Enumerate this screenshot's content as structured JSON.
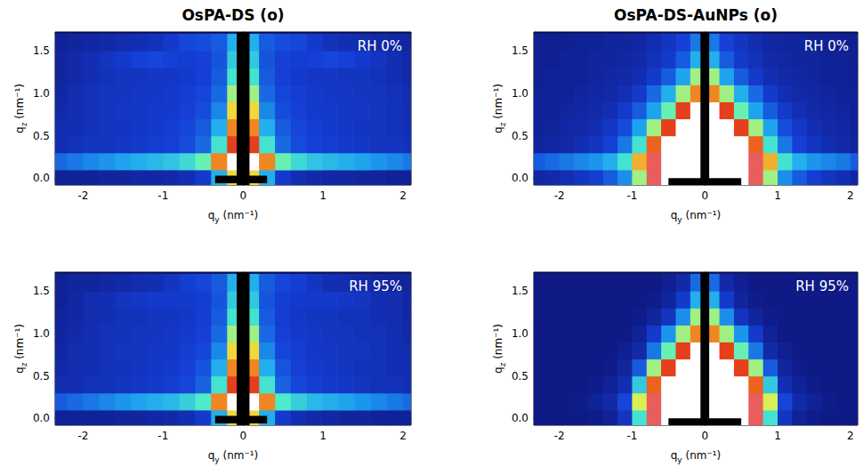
{
  "chart_data": [
    {
      "type": "heatmap",
      "title": "OsPA-DS (o)",
      "annotation": "RH 0%",
      "x_label": "qy (nm⁻¹)",
      "y_label": "qz (nm⁻¹)",
      "xlim": [
        -2.35,
        2.1
      ],
      "ylim": [
        -0.08,
        1.72
      ],
      "xticks": [
        -2,
        -1,
        0,
        1,
        2
      ],
      "yticks": [
        {
          "value": 0,
          "label": "0.0"
        },
        0.5,
        {
          "value": 1,
          "label": "1.0"
        },
        1.5
      ],
      "intensity_range": [
        0,
        10
      ],
      "qy": [
        -2.3,
        -2.1,
        -1.9,
        -1.7,
        -1.5,
        -1.3,
        -1.1,
        -0.9,
        -0.7,
        -0.5,
        -0.3,
        -0.1,
        0.1,
        0.3,
        0.5,
        0.7,
        0.9,
        1.1,
        1.3,
        1.5,
        1.7,
        1.9,
        2.1
      ],
      "qz": [
        0,
        0.2,
        0.4,
        0.6,
        0.8,
        1,
        1.2,
        1.4,
        1.6
      ],
      "intensity": [
        [
          0.3,
          0.3,
          0.3,
          0.4,
          0.4,
          0.5,
          0.5,
          0.6,
          0.8,
          1.2,
          3,
          6,
          6,
          3,
          1.2,
          0.8,
          0.6,
          0.5,
          0.5,
          0.4,
          0.4,
          0.3,
          0.3
        ],
        [
          2,
          2.2,
          2.4,
          2.6,
          2.8,
          3,
          3.2,
          3.4,
          3.8,
          4.5,
          7,
          10,
          10,
          7,
          4.5,
          3.8,
          3.4,
          3.2,
          3,
          2.8,
          2.6,
          2.4,
          2.2
        ],
        [
          0.8,
          0.9,
          1,
          1,
          1.1,
          1.2,
          1.3,
          1.4,
          1.6,
          2,
          4,
          8,
          8,
          4,
          2,
          1.6,
          1.4,
          1.3,
          1.2,
          1.1,
          1,
          1,
          0.9
        ],
        [
          0.7,
          0.8,
          0.9,
          1,
          1,
          1.1,
          1.2,
          1.3,
          1.5,
          1.8,
          3,
          7,
          7,
          3,
          1.8,
          1.5,
          1.3,
          1.2,
          1.1,
          1,
          1,
          0.9,
          0.8
        ],
        [
          0.6,
          0.8,
          0.9,
          1,
          1.1,
          1.1,
          1.2,
          1.2,
          1.4,
          1.6,
          2.4,
          6,
          6,
          2.4,
          1.6,
          1.4,
          1.2,
          1.2,
          1.1,
          1.1,
          1,
          0.9,
          0.8
        ],
        [
          0.5,
          0.7,
          0.9,
          1,
          1,
          1.1,
          1.1,
          1.2,
          1.3,
          1.5,
          2,
          5,
          5,
          2,
          1.5,
          1.3,
          1.2,
          1.1,
          1.1,
          1,
          1,
          0.9,
          0.7
        ],
        [
          0.4,
          0.6,
          0.8,
          0.9,
          1,
          1,
          1.1,
          1.1,
          1.2,
          1.4,
          1.8,
          4,
          4,
          1.8,
          1.4,
          1.2,
          1.1,
          1.1,
          1,
          1,
          0.9,
          0.8,
          0.6
        ],
        [
          0.4,
          0.6,
          0.8,
          1,
          1.2,
          1.4,
          1.5,
          1.4,
          1.3,
          1.4,
          1.7,
          3.5,
          3.5,
          1.7,
          1.4,
          1.3,
          1.4,
          1.5,
          1.4,
          1.2,
          1,
          0.8,
          0.6
        ],
        [
          0.3,
          0.4,
          0.5,
          0.6,
          0.7,
          0.8,
          0.9,
          1.2,
          1.5,
          1.6,
          1.8,
          3,
          3,
          1.8,
          1.6,
          1.5,
          1.2,
          0.9,
          0.8,
          0.7,
          0.6,
          0.5,
          0.4
        ]
      ],
      "mask": [
        [
          -0.08,
          0.08,
          -0.08,
          1.72
        ],
        [
          -0.35,
          0.3,
          -0.06,
          0.03
        ]
      ]
    },
    {
      "type": "heatmap",
      "title": "OsPA-DS-AuNPs (o)",
      "annotation": "RH 0%",
      "x_label": "qy (nm⁻¹)",
      "y_label": "qz (nm⁻¹)",
      "xlim": [
        -2.35,
        2.1
      ],
      "ylim": [
        -0.08,
        1.72
      ],
      "xticks": [
        -2,
        -1,
        0,
        1,
        2
      ],
      "yticks": [
        {
          "value": 0,
          "label": "0.0"
        },
        0.5,
        {
          "value": 1,
          "label": "1.0"
        },
        1.5
      ],
      "intensity_range": [
        0,
        10
      ],
      "qy": [
        -2.3,
        -2.1,
        -1.9,
        -1.7,
        -1.5,
        -1.3,
        -1.1,
        -0.9,
        -0.7,
        -0.5,
        -0.3,
        -0.1,
        0.1,
        0.3,
        0.5,
        0.7,
        0.9,
        1.1,
        1.3,
        1.5,
        1.7,
        1.9,
        2.1
      ],
      "qz": [
        0,
        0.2,
        0.4,
        0.6,
        0.8,
        1,
        1.2,
        1.4,
        1.6
      ],
      "intensity": [
        [
          0.5,
          0.6,
          0.8,
          1,
          1.3,
          1.8,
          2.5,
          5,
          9,
          10,
          10,
          10,
          10,
          10,
          10,
          9,
          5,
          2.5,
          1.8,
          1.3,
          1,
          0.8,
          0.5
        ],
        [
          1.8,
          2,
          2.2,
          2.4,
          2.6,
          3,
          4,
          6.5,
          9,
          10,
          10,
          10,
          10,
          10,
          10,
          9,
          6.5,
          4,
          3,
          2.6,
          2.4,
          2.2,
          1.8
        ],
        [
          0.4,
          0.5,
          0.6,
          0.8,
          1,
          1.4,
          2.2,
          4,
          7.5,
          10,
          10,
          10,
          10,
          10,
          10,
          7.5,
          4,
          2.2,
          1.4,
          1,
          0.8,
          0.6,
          0.4
        ],
        [
          0.3,
          0.4,
          0.5,
          0.6,
          0.8,
          1.1,
          1.6,
          2.8,
          5,
          8,
          10,
          10,
          10,
          10,
          8,
          5,
          2.8,
          1.6,
          1.1,
          0.8,
          0.6,
          0.5,
          0.3
        ],
        [
          0.3,
          0.3,
          0.4,
          0.5,
          0.6,
          0.8,
          1.2,
          1.8,
          2.8,
          4.5,
          8,
          10,
          10,
          8,
          4.5,
          2.8,
          1.8,
          1.2,
          0.8,
          0.6,
          0.5,
          0.4,
          0.3
        ],
        [
          0.3,
          0.3,
          0.3,
          0.4,
          0.5,
          0.6,
          0.8,
          1.2,
          2,
          3,
          5,
          7,
          7,
          5,
          3,
          2,
          1.2,
          0.8,
          0.6,
          0.5,
          0.4,
          0.3,
          0.3
        ],
        [
          0.2,
          0.3,
          0.3,
          0.3,
          0.4,
          0.5,
          0.6,
          0.8,
          1.2,
          1.8,
          2.8,
          5,
          5,
          2.8,
          1.8,
          1.2,
          0.8,
          0.6,
          0.5,
          0.4,
          0.3,
          0.3,
          0.2
        ],
        [
          0.2,
          0.2,
          0.3,
          0.3,
          0.4,
          0.4,
          0.5,
          0.6,
          0.9,
          1.2,
          1.8,
          3,
          3,
          1.8,
          1.2,
          0.9,
          0.6,
          0.5,
          0.4,
          0.4,
          0.3,
          0.3,
          0.2
        ],
        [
          0.2,
          0.2,
          0.2,
          0.3,
          0.3,
          0.4,
          0.4,
          0.5,
          0.7,
          1,
          1.4,
          2.2,
          2.2,
          1.4,
          1,
          0.7,
          0.5,
          0.4,
          0.4,
          0.3,
          0.3,
          0.2,
          0.2
        ]
      ],
      "mask": [
        [
          -0.06,
          0.06,
          -0.08,
          1.72
        ],
        [
          -0.5,
          0.5,
          -0.08,
          0
        ]
      ]
    },
    {
      "type": "heatmap",
      "annotation": "RH 95%",
      "x_label": "qy (nm⁻¹)",
      "y_label": "qz (nm⁻¹)",
      "xlim": [
        -2.35,
        2.1
      ],
      "ylim": [
        -0.08,
        1.72
      ],
      "xticks": [
        -2,
        -1,
        0,
        1,
        2
      ],
      "yticks": [
        {
          "value": 0,
          "label": "0.0"
        },
        0.5,
        {
          "value": 1,
          "label": "1.0"
        },
        1.5
      ],
      "intensity_range": [
        0,
        10
      ],
      "qy": [
        -2.3,
        -2.1,
        -1.9,
        -1.7,
        -1.5,
        -1.3,
        -1.1,
        -0.9,
        -0.7,
        -0.5,
        -0.3,
        -0.1,
        0.1,
        0.3,
        0.5,
        0.7,
        0.9,
        1.1,
        1.3,
        1.5,
        1.7,
        1.9,
        2.1
      ],
      "qz": [
        0,
        0.2,
        0.4,
        0.6,
        0.8,
        1,
        1.2,
        1.4,
        1.6
      ],
      "intensity": [
        [
          0.3,
          0.3,
          0.3,
          0.3,
          0.4,
          0.4,
          0.5,
          0.6,
          0.8,
          1.2,
          3,
          6,
          6,
          3,
          1.2,
          0.8,
          0.6,
          0.5,
          0.4,
          0.4,
          0.3,
          0.3,
          0.3
        ],
        [
          1.8,
          2,
          2.2,
          2.4,
          2.6,
          2.8,
          3,
          3.2,
          3.6,
          4.2,
          7,
          10,
          10,
          7,
          4.2,
          3.6,
          3.2,
          3,
          2.8,
          2.6,
          2.4,
          2.2,
          2
        ],
        [
          0.7,
          0.8,
          0.9,
          0.9,
          1,
          1.1,
          1.2,
          1.3,
          1.5,
          1.9,
          4,
          8,
          8,
          4,
          1.9,
          1.5,
          1.3,
          1.2,
          1.1,
          1,
          0.9,
          0.9,
          0.8
        ],
        [
          0.6,
          0.7,
          0.8,
          0.9,
          0.9,
          1,
          1.1,
          1.2,
          1.4,
          1.7,
          3,
          7,
          7,
          3,
          1.7,
          1.4,
          1.2,
          1.1,
          1,
          0.9,
          0.9,
          0.8,
          0.7
        ],
        [
          0.5,
          0.7,
          0.8,
          0.9,
          1,
          1,
          1.1,
          1.1,
          1.3,
          1.5,
          2.4,
          6,
          6,
          2.4,
          1.5,
          1.3,
          1.1,
          1.1,
          1,
          1,
          0.9,
          0.8,
          0.7
        ],
        [
          0.4,
          0.6,
          0.8,
          0.9,
          0.9,
          1,
          1,
          1.1,
          1.2,
          1.4,
          2,
          5,
          5,
          2,
          1.4,
          1.2,
          1.1,
          1,
          1,
          0.9,
          0.9,
          0.8,
          0.6
        ],
        [
          0.4,
          0.5,
          0.7,
          0.8,
          0.9,
          0.9,
          1,
          1,
          1.1,
          1.3,
          1.8,
          4,
          4,
          1.8,
          1.3,
          1.1,
          1,
          1,
          0.9,
          0.9,
          0.8,
          0.7,
          0.5
        ],
        [
          0.3,
          0.5,
          0.7,
          0.8,
          1,
          1.1,
          1.2,
          1.2,
          1.2,
          1.3,
          1.7,
          3.5,
          3.5,
          1.7,
          1.3,
          1.2,
          1.2,
          1.2,
          1.1,
          1,
          0.8,
          0.7,
          0.5
        ],
        [
          0.3,
          0.4,
          0.4,
          0.5,
          0.6,
          0.7,
          0.8,
          1,
          1.3,
          1.5,
          1.8,
          3,
          3,
          1.8,
          1.5,
          1.3,
          1,
          0.8,
          0.7,
          0.6,
          0.5,
          0.4,
          0.4
        ]
      ],
      "mask": [
        [
          -0.08,
          0.08,
          -0.08,
          1.72
        ],
        [
          -0.35,
          0.3,
          -0.06,
          0.03
        ]
      ]
    },
    {
      "type": "heatmap",
      "annotation": "RH 95%",
      "x_label": "qy (nm⁻¹)",
      "y_label": "qz (nm⁻¹)",
      "xlim": [
        -2.35,
        2.1
      ],
      "ylim": [
        -0.08,
        1.72
      ],
      "xticks": [
        -2,
        -1,
        0,
        1,
        2
      ],
      "yticks": [
        {
          "value": 0,
          "label": "0.0"
        },
        0.5,
        {
          "value": 1,
          "label": "1.0"
        },
        1.5
      ],
      "intensity_range": [
        0,
        10
      ],
      "qy": [
        -2.3,
        -2.1,
        -1.9,
        -1.7,
        -1.5,
        -1.3,
        -1.1,
        -0.9,
        -0.7,
        -0.5,
        -0.3,
        -0.1,
        0.1,
        0.3,
        0.5,
        0.7,
        0.9,
        1.1,
        1.3,
        1.5,
        1.7,
        1.9,
        2.1
      ],
      "qz": [
        0,
        0.2,
        0.4,
        0.6,
        0.8,
        1,
        1.2,
        1.4,
        1.6
      ],
      "intensity": [
        [
          0,
          0,
          0,
          0,
          0.1,
          0.3,
          1,
          4,
          9,
          10,
          10,
          10,
          10,
          10,
          10,
          9,
          4,
          1,
          0.3,
          0.1,
          0,
          0,
          0
        ],
        [
          0,
          0,
          0,
          0.1,
          0.3,
          0.6,
          1.5,
          5.5,
          9,
          10,
          10,
          10,
          10,
          10,
          10,
          9,
          5.5,
          1.5,
          0.6,
          0.3,
          0.1,
          0,
          0
        ],
        [
          0,
          0,
          0,
          0,
          0.1,
          0.3,
          0.8,
          3.5,
          7.5,
          10,
          10,
          10,
          10,
          10,
          10,
          7.5,
          3.5,
          0.8,
          0.3,
          0.1,
          0,
          0,
          0
        ],
        [
          0,
          0,
          0,
          0,
          0,
          0.1,
          0.4,
          1.8,
          5,
          8,
          10,
          10,
          10,
          10,
          8,
          5,
          1.8,
          0.4,
          0.1,
          0,
          0,
          0,
          0
        ],
        [
          0,
          0,
          0,
          0,
          0,
          0,
          0.2,
          0.6,
          2.2,
          4.5,
          8,
          10,
          10,
          8,
          4.5,
          2.2,
          0.6,
          0.2,
          0,
          0,
          0,
          0,
          0
        ],
        [
          0,
          0,
          0,
          0,
          0,
          0,
          0,
          0.3,
          1.2,
          2.6,
          5,
          7,
          7,
          5,
          2.6,
          1.2,
          0.3,
          0,
          0,
          0,
          0,
          0,
          0
        ],
        [
          0,
          0,
          0,
          0,
          0,
          0,
          0,
          0.1,
          0.4,
          1,
          2.5,
          5,
          5,
          2.5,
          1,
          0.4,
          0.1,
          0,
          0,
          0,
          0,
          0,
          0
        ],
        [
          0,
          0,
          0,
          0,
          0,
          0,
          0,
          0,
          0.1,
          0.4,
          1.2,
          3,
          3,
          1.2,
          0.4,
          0.1,
          0,
          0,
          0,
          0,
          0,
          0,
          0
        ],
        [
          0,
          0,
          0,
          0,
          0,
          0,
          0,
          0,
          0,
          0.2,
          0.6,
          2,
          2,
          0.6,
          0.2,
          0,
          0,
          0,
          0,
          0,
          0,
          0,
          0
        ]
      ],
      "mask": [
        [
          -0.06,
          0.06,
          -0.08,
          1.72
        ],
        [
          -0.5,
          0.5,
          -0.08,
          0
        ]
      ]
    }
  ]
}
